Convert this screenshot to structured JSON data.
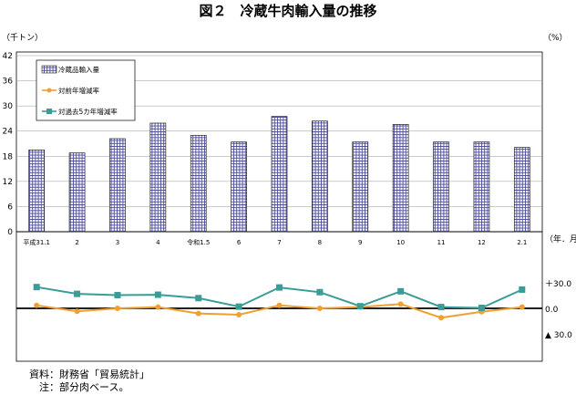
{
  "chart_data": {
    "type": "bar",
    "title": "図２　冷蔵牛肉輸入量の推移",
    "categories": [
      "平成31.1",
      "2",
      "3",
      "4",
      "令和1.5",
      "6",
      "7",
      "8",
      "9",
      "10",
      "11",
      "12",
      "2.1"
    ],
    "x_unit": "（年．月）",
    "bar_series": {
      "name": "冷蔵品輸入量",
      "unit": "（千トン）",
      "values": [
        19.5,
        18.8,
        22.2,
        25.9,
        23.0,
        21.4,
        27.5,
        26.4,
        21.4,
        25.6,
        21.4,
        21.4,
        20.1
      ],
      "ylim": [
        0,
        42
      ],
      "yticks": [
        "0",
        "6",
        "12",
        "18",
        "24",
        "30",
        "36",
        "42"
      ]
    },
    "line_series": [
      {
        "name": "対前年増減率",
        "color": "#f0a030",
        "marker": "circle",
        "values": [
          3.5,
          -3.5,
          0.0,
          1.5,
          -6.0,
          -7.5,
          3.5,
          0.0,
          1.5,
          5.0,
          -11.0,
          -4.0,
          1.5
        ]
      },
      {
        "name": "対過去5カ年増減率",
        "color": "#3a9c96",
        "marker": "square",
        "values": [
          25.0,
          17.0,
          15.5,
          16.0,
          12.0,
          2.0,
          24.5,
          19.0,
          2.5,
          20.0,
          1.5,
          0.5,
          22.0
        ]
      }
    ],
    "line_unit": "（%）",
    "line_ylim": [
      -60,
      60
    ],
    "line_ticks": [
      {
        "value": 30,
        "label": "＋30.0"
      },
      {
        "value": 0,
        "label": "0.0"
      },
      {
        "value": -30,
        "label": "▲ 30.0"
      }
    ],
    "legend_position": "top-left"
  },
  "notes": {
    "source": "資料：財務省「貿易統計」",
    "note": "　注：部分肉ベース。"
  }
}
